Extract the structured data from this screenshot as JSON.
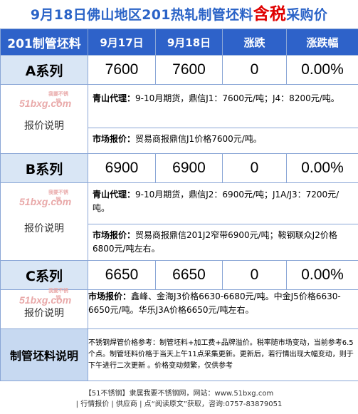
{
  "title": {
    "prefix": "9月18日佛山地区201热轧制管坯料",
    "highlight": "含税",
    "suffix": "采购价"
  },
  "header": {
    "col1": "201制管坯料",
    "col2": "9月17日",
    "col3": "9月18日",
    "col4": "涨跌",
    "col5": "涨跌幅"
  },
  "rows": [
    {
      "series": "A系列",
      "d17": "7600",
      "d18": "7600",
      "change": "0",
      "pct": "0.00%",
      "note_label": "报价说明",
      "watermark": "51bxg.com",
      "watermark_small": "我要不锈钢",
      "line1_label": "青山代理：",
      "line1_text": "9-10月期货，鼎信J1：7600元/吨；J4：8200元/吨。",
      "line2_label": "市场报价：",
      "line2_text": "贸易商报鼎信J1价格7600元/吨。"
    },
    {
      "series": "B系列",
      "d17": "6900",
      "d18": "6900",
      "change": "0",
      "pct": "0.00%",
      "note_label": "报价说明",
      "watermark": "51bxg.com",
      "watermark_small": "我要不锈钢",
      "line1_label": "青山代理：",
      "line1_text": "9-10月期货，鼎信J2：6900元/吨；J1A/J3：7200元/吨。",
      "line2_label": "市场报价：",
      "line2_text": "贸易商报鼎信201J2窄带6900元/吨；鞍钢联众J2价格6800元/吨左右。"
    },
    {
      "series": "C系列",
      "d17": "6650",
      "d18": "6650",
      "change": "0",
      "pct": "0.00%",
      "note_label": "报价说明",
      "watermark": "51bxg.com",
      "watermark_small": "我要不锈钢",
      "line1_label": "市场报价：",
      "line1_text": "鑫峰、金海J3价格6630-6680元/吨。中金J5价格6630-6650元/吨。华乐J3A价格6650元/吨左右。"
    }
  ],
  "summary": {
    "label": "制管坯料说明",
    "text": "不锈钢焊管价格参考：制管坯料+加工费+品牌溢价。税率随市场变动，当前参考6.5个点。制管坯料价格于当天上午11点采集更新。更新后，若行情出现大幅变动，则于下午进行二次更新 。价格变动频繁，仅供参考"
  },
  "footer": {
    "line1": "【51不锈钢】隶属我要不锈钢网，网站：www.51bxg.com",
    "line2": "| 行情报价 | 供应商 | 点“阅读原文”获取，咨询:0757-83879051"
  }
}
